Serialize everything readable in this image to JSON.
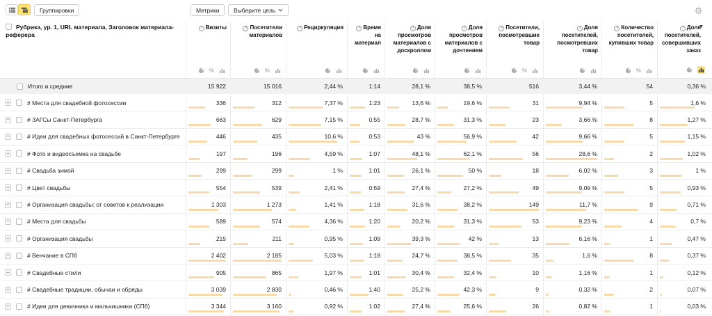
{
  "toolbar": {
    "groupings_label": "Группировки",
    "metrics_label": "Метрики",
    "goal_label": "Выберите цель"
  },
  "header": {
    "dimension_title": "Рубрика, ур. 1, URL материала, Заголовок материала-реферера",
    "columns": [
      {
        "title": "Визиты",
        "icons": [
          "pie-icon",
          "percent-icon",
          "bar-icon"
        ]
      },
      {
        "title": "Посетители материалов",
        "icons": [
          "pie-icon",
          "percent-icon",
          "bar-icon"
        ]
      },
      {
        "title": "Рециркуляция",
        "icons": [
          "pie-icon",
          "bar-icon"
        ]
      },
      {
        "title": "Время на материал",
        "icons": [
          "pie-icon",
          "bar-icon"
        ]
      },
      {
        "title": "Доля просмотров материалов с доскроллом",
        "icons": [
          "pie-icon",
          "bar-icon"
        ]
      },
      {
        "title": "Доля просмотров материалов с дочтением",
        "icons": [
          "pie-icon",
          "bar-icon"
        ]
      },
      {
        "title": "Посетители, посмотревшие товар",
        "icons": [
          "pie-icon",
          "percent-icon",
          "bar-icon"
        ]
      },
      {
        "title": "Доля посетителей, посмотревших товар",
        "icons": [
          "pie-icon",
          "bar-icon"
        ]
      },
      {
        "title": "Количество посетителей, купивших товар",
        "icons": [
          "pie-icon",
          "percent-icon",
          "bar-icon"
        ]
      },
      {
        "title": "Доля посетителей, совершивших заказ",
        "icons": [
          "pie-icon",
          "bar-icon-active"
        ],
        "sort": "▼"
      }
    ]
  },
  "totals": {
    "label": "Итого и средние",
    "values": [
      "15 922",
      "15 016",
      "2,44 %",
      "1:14",
      "28,1 %",
      "38,5 %",
      "516",
      "3,44 %",
      "54",
      "0,36 %"
    ]
  },
  "rows": [
    {
      "label": "# Места для свадебной фотосессии",
      "values": [
        "336",
        "312",
        "7,37 %",
        "1:23",
        "13,6 %",
        "19,6 %",
        "31",
        "9,94 %",
        "5",
        "1,6 %"
      ],
      "bars": [
        0.44,
        0.44,
        0.63,
        0.5,
        0.28,
        0.23,
        0.42,
        0.72,
        0.42,
        0.75
      ]
    },
    {
      "label": "# ЗАГСы Санкт-Петербурга",
      "values": [
        "663",
        "629",
        "7,15 %",
        "0:55",
        "28,7 %",
        "31,3 %",
        "23",
        "3,66 %",
        "8",
        "1,27 %"
      ],
      "bars": [
        0.6,
        0.6,
        0.6,
        0.33,
        0.42,
        0.37,
        0.33,
        0.31,
        0.62,
        0.6
      ]
    },
    {
      "label": "# Идеи для свадебных фотосессий в Санкт-Петербурге",
      "values": [
        "446",
        "435",
        "10,6 %",
        "0:53",
        "43 %",
        "56,9 %",
        "42",
        "9,66 %",
        "5",
        "1,15 %"
      ],
      "bars": [
        0.5,
        0.5,
        0.9,
        0.32,
        0.63,
        0.66,
        0.55,
        0.72,
        0.42,
        0.55
      ]
    },
    {
      "label": "# Фото и видеосъемка на свадьбе",
      "values": [
        "197",
        "196",
        "4,59 %",
        "1:07",
        "48,1 %",
        "62,1 %",
        "56",
        "28,6 %",
        "2",
        "1,02 %"
      ],
      "bars": [
        0.3,
        0.3,
        0.4,
        0.42,
        0.7,
        0.72,
        0.68,
        1.0,
        0.2,
        0.5
      ]
    },
    {
      "label": "# Свадьба зимой",
      "values": [
        "299",
        "299",
        "1 %",
        "1:01",
        "26,1 %",
        "50 %",
        "18",
        "6,02 %",
        "3",
        "1 %"
      ],
      "bars": [
        0.35,
        0.38,
        0.1,
        0.38,
        0.38,
        0.58,
        0.25,
        0.45,
        0.28,
        0.48
      ]
    },
    {
      "label": "# Цвет свадьбы",
      "values": [
        "554",
        "539",
        "2,41 %",
        "0:59",
        "27,4 %",
        "27,2 %",
        "49",
        "9,09 %",
        "5",
        "0,93 %"
      ],
      "bars": [
        0.55,
        0.55,
        0.22,
        0.36,
        0.4,
        0.32,
        0.6,
        0.7,
        0.42,
        0.45
      ]
    },
    {
      "label": "# Организация свадьбы: от советов к реализации",
      "values": [
        "1 303",
        "1 273",
        "1,41 %",
        "1:18",
        "31,6 %",
        "38,2 %",
        "149",
        "11,7 %",
        "9",
        "0,71 %"
      ],
      "bars": [
        0.8,
        0.8,
        0.14,
        0.48,
        0.46,
        0.45,
        1.0,
        0.78,
        0.7,
        0.36
      ]
    },
    {
      "label": "# Места для свадьбы",
      "values": [
        "589",
        "574",
        "4,36 %",
        "1:20",
        "20,2 %",
        "31,3 %",
        "53",
        "9,23 %",
        "4",
        "0,7 %"
      ],
      "bars": [
        0.56,
        0.56,
        0.38,
        0.5,
        0.3,
        0.37,
        0.65,
        0.7,
        0.35,
        0.35
      ]
    },
    {
      "label": "# Организация свадьбы",
      "values": [
        "215",
        "211",
        "0,95 %",
        "1:09",
        "39,3 %",
        "42 %",
        "13",
        "6,16 %",
        "1",
        "0,47 %"
      ],
      "bars": [
        0.32,
        0.32,
        0.1,
        0.43,
        0.57,
        0.5,
        0.2,
        0.46,
        0.12,
        0.25
      ]
    },
    {
      "label": "# Венчание в СПб",
      "values": [
        "2 402",
        "2 185",
        "5,03 %",
        "1:18",
        "24,7 %",
        "38,5 %",
        "35",
        "1,6 %",
        "8",
        "0,37 %"
      ],
      "bars": [
        1.0,
        1.0,
        0.45,
        0.48,
        0.36,
        0.45,
        0.45,
        0.15,
        0.62,
        0.2
      ]
    },
    {
      "label": "# Свадебные стили",
      "values": [
        "905",
        "865",
        "1,97 %",
        "1:01",
        "30,4 %",
        "32,4 %",
        "10",
        "1,16 %",
        "1",
        "0,12 %"
      ],
      "bars": [
        0.68,
        0.68,
        0.18,
        0.38,
        0.44,
        0.38,
        0.15,
        0.12,
        0.12,
        0.08
      ]
    },
    {
      "label": "# Свадебные традиции, обычаи и обряды",
      "values": [
        "3 039",
        "2 830",
        "0,46 %",
        "1:40",
        "25,2 %",
        "42,3 %",
        "9",
        "0,32 %",
        "2",
        "0,07 %"
      ],
      "bars": [
        0.9,
        0.9,
        0.05,
        0.62,
        0.37,
        0.5,
        0.14,
        0.05,
        0.2,
        0.05
      ]
    },
    {
      "label": "# Идеи для девичника и мальчишника (СПб)",
      "values": [
        "3 344",
        "3 160",
        "0,92 %",
        "1:02",
        "27,4 %",
        "25,6 %",
        "26",
        "0,82 %",
        "1",
        "0,03 %"
      ],
      "bars": [
        0.95,
        0.95,
        0.09,
        0.39,
        0.4,
        0.3,
        0.35,
        0.07,
        0.12,
        0.03
      ]
    }
  ]
}
